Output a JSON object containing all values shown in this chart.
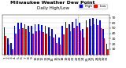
{
  "title": "Milwaukee Weather Dew Point",
  "subtitle": "Daily High/Low",
  "background_color": "#ffffff",
  "grid_color": "#cccccc",
  "high_color": "#0000ff",
  "low_color": "#ff0000",
  "legend_high": "High",
  "legend_low": "Low",
  "ylim": [
    0,
    75
  ],
  "yticks": [
    10,
    20,
    30,
    40,
    50,
    60,
    70
  ],
  "days": [
    1,
    2,
    3,
    4,
    5,
    6,
    7,
    8,
    9,
    10,
    11,
    12,
    13,
    14,
    15,
    16,
    17,
    18,
    19,
    20,
    21,
    22,
    23,
    24,
    25,
    26,
    27,
    28,
    29,
    30,
    31
  ],
  "high_values": [
    52,
    30,
    22,
    55,
    60,
    60,
    58,
    55,
    55,
    58,
    58,
    56,
    55,
    52,
    48,
    38,
    32,
    55,
    62,
    58,
    62,
    68,
    60,
    48,
    65,
    68,
    70,
    68,
    65,
    48,
    20
  ],
  "low_values": [
    35,
    18,
    10,
    40,
    48,
    50,
    48,
    42,
    40,
    44,
    45,
    42,
    40,
    35,
    32,
    22,
    18,
    38,
    50,
    44,
    50,
    55,
    46,
    32,
    52,
    55,
    58,
    56,
    50,
    30,
    10
  ],
  "title_fontsize": 4.5,
  "subtitle_fontsize": 4.0,
  "tick_fontsize": 3.2,
  "legend_fontsize": 3.2,
  "dotted_line_after_day": 22
}
